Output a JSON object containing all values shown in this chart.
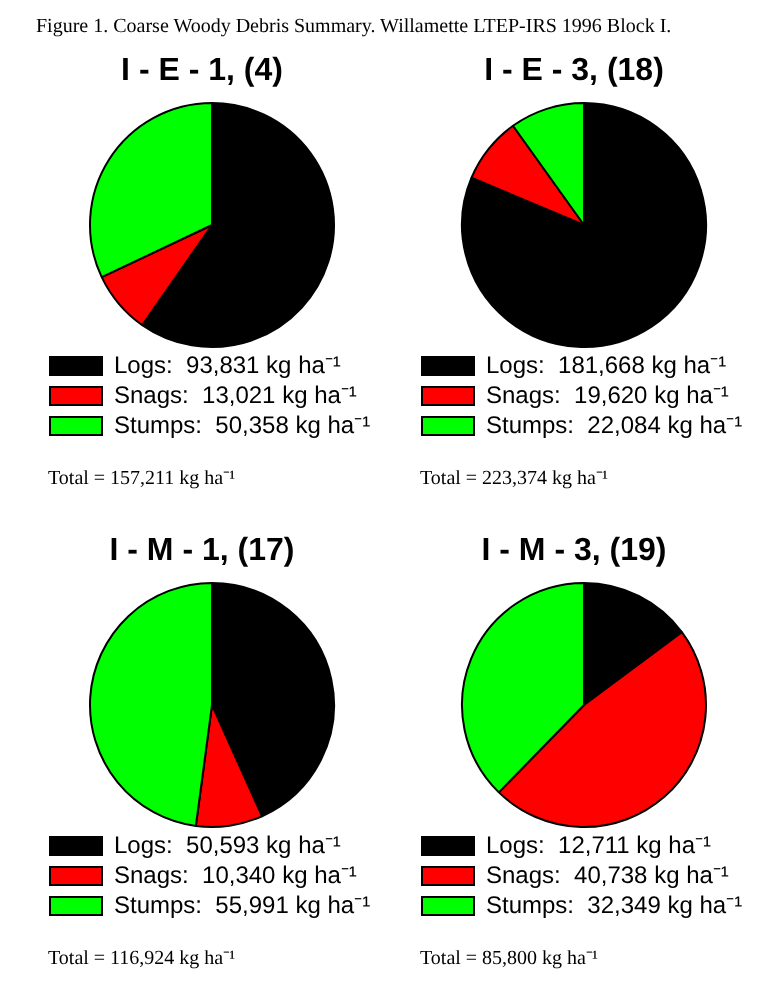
{
  "chart_data": [
    {
      "type": "other",
      "title": "Figure 1.  Coarse Woody Debris Summary. Willamette LTEP-IRS 1996 Block I."
    },
    {
      "type": "pie",
      "title": "I - E - 1, (4)",
      "categories": [
        "Logs",
        "Snags",
        "Stumps"
      ],
      "values": [
        93831,
        13021,
        50358
      ],
      "colors": [
        "#000000",
        "#ff0000",
        "#00ff00"
      ],
      "value_labels": [
        "93,831 kg ha⁻¹",
        "13,021 kg ha⁻¹",
        "50,358 kg ha⁻¹"
      ],
      "legend": "bottom",
      "annotations": [
        "Total = 157,211 kg ha⁻¹"
      ]
    },
    {
      "type": "pie",
      "title": "I - E - 3, (18)",
      "categories": [
        "Logs",
        "Snags",
        "Stumps"
      ],
      "values": [
        181668,
        19620,
        22084
      ],
      "colors": [
        "#000000",
        "#ff0000",
        "#00ff00"
      ],
      "value_labels": [
        "181,668 kg ha⁻¹",
        "19,620 kg ha⁻¹",
        "22,084 kg ha⁻¹"
      ],
      "legend": "bottom",
      "annotations": [
        "Total = 223,374 kg ha⁻¹"
      ]
    },
    {
      "type": "pie",
      "title": "I - M - 1, (17)",
      "categories": [
        "Logs",
        "Snags",
        "Stumps"
      ],
      "values": [
        50593,
        10340,
        55991
      ],
      "colors": [
        "#000000",
        "#ff0000",
        "#00ff00"
      ],
      "value_labels": [
        "50,593 kg ha⁻¹",
        "10,340 kg ha⁻¹",
        "55,991 kg ha⁻¹"
      ],
      "legend": "bottom",
      "annotations": [
        "Total = 116,924 kg ha⁻¹"
      ]
    },
    {
      "type": "pie",
      "title": "I - M - 3, (19)",
      "categories": [
        "Logs",
        "Snags",
        "Stumps"
      ],
      "values": [
        12711,
        40738,
        32349
      ],
      "colors": [
        "#000000",
        "#ff0000",
        "#00ff00"
      ],
      "value_labels": [
        "12,711 kg ha⁻¹",
        "40,738 kg ha⁻¹",
        "32,349 kg ha⁻¹"
      ],
      "legend": "bottom",
      "annotations": [
        "Total = 85,800 kg ha⁻¹"
      ]
    }
  ]
}
